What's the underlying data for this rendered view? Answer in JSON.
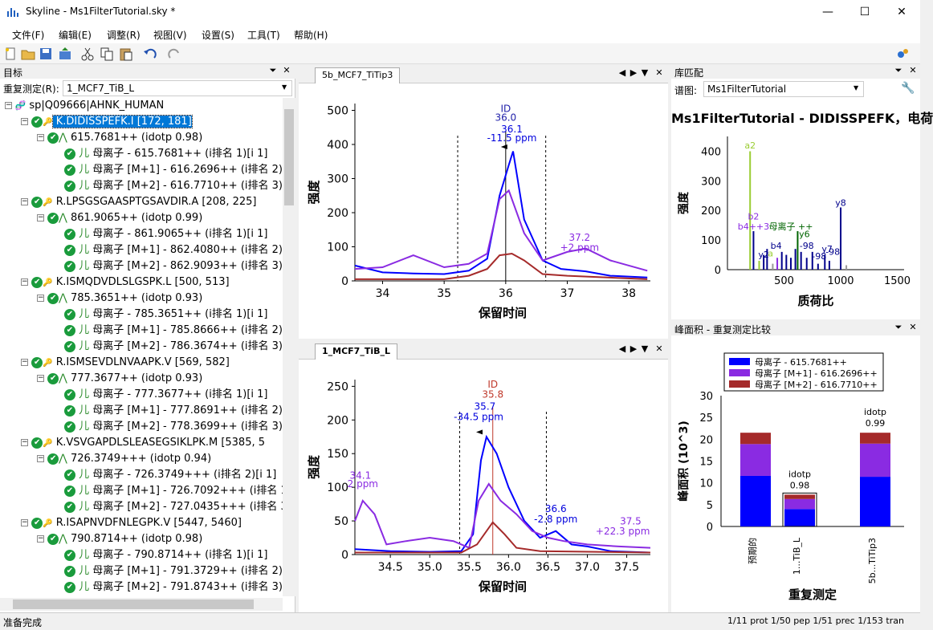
{
  "window": {
    "title": "Skyline - Ms1FilterTutorial.sky *"
  },
  "menu": [
    "文件(F)",
    "编辑(E)",
    "调整(R)",
    "视图(V)",
    "设置(S)",
    "工具(T)",
    "帮助(H)"
  ],
  "targets": {
    "title": "目标",
    "replicate_label": "重复测定(R):",
    "replicate_value": "1_MCF7_TiB_L",
    "protein": "sp|Q09666|AHNK_HUMAN",
    "rows": [
      {
        "type": "pep",
        "text": "K.DIDISSPEFK.I [172, 181]",
        "selected": true
      },
      {
        "type": "prec",
        "text": "615.7681++ (idotp 0.98)"
      },
      {
        "type": "trans",
        "text": "母离子 - 615.7681++ (i排名 1)[i 1]"
      },
      {
        "type": "trans",
        "text": "母离子 [M+1] - 616.2696++ (i排名 2)[i"
      },
      {
        "type": "trans",
        "text": "母离子 [M+2] - 616.7710++ (i排名 3)[i"
      },
      {
        "type": "pep",
        "text": "R.LPSGSGAASPTGSAVDIR.A [208, 225]"
      },
      {
        "type": "prec",
        "text": "861.9065++ (idotp 0.99)"
      },
      {
        "type": "trans",
        "text": "母离子 - 861.9065++ (i排名 1)[i 1]"
      },
      {
        "type": "trans",
        "text": "母离子 [M+1] - 862.4080++ (i排名 2)[i"
      },
      {
        "type": "trans",
        "text": "母离子 [M+2] - 862.9093++ (i排名 3)[i"
      },
      {
        "type": "pep",
        "text": "K.ISMQDVDLSLGSPK.L [500, 513]"
      },
      {
        "type": "prec",
        "text": "785.3651++ (idotp 0.93)"
      },
      {
        "type": "trans",
        "text": "母离子 - 785.3651++ (i排名 1)[i 1]"
      },
      {
        "type": "trans",
        "text": "母离子 [M+1] - 785.8666++ (i排名 2)[i"
      },
      {
        "type": "trans",
        "text": "母离子 [M+2] - 786.3674++ (i排名 3)[i"
      },
      {
        "type": "pep",
        "text": "R.ISMSEVDLNVAAPK.V [569, 582]"
      },
      {
        "type": "prec",
        "text": "777.3677++ (idotp 0.93)"
      },
      {
        "type": "trans",
        "text": "母离子 - 777.3677++ (i排名 1)[i 1]"
      },
      {
        "type": "trans",
        "text": "母离子 [M+1] - 777.8691++ (i排名 2)[i"
      },
      {
        "type": "trans",
        "text": "母离子 [M+2] - 778.3699++ (i排名 3)[i"
      },
      {
        "type": "pep",
        "text": "K.VSVGAPDLSLEASEGSIKLPK.M [5385, 5"
      },
      {
        "type": "prec",
        "text": "726.3749+++ (idotp 0.94)"
      },
      {
        "type": "trans",
        "text": "母离子 - 726.3749+++ (i排名 2)[i 1]"
      },
      {
        "type": "trans",
        "text": "母离子 [M+1] - 726.7092+++ (i排名 1)"
      },
      {
        "type": "trans",
        "text": "母离子 [M+2] - 727.0435+++ (i排名 3)"
      },
      {
        "type": "pep",
        "text": "R.ISAPNVDFNLEGPK.V [5447, 5460]"
      },
      {
        "type": "prec",
        "text": "790.8714++ (idotp 0.98)"
      },
      {
        "type": "trans",
        "text": "母离子 - 790.8714++ (i排名 1)[i 1]"
      },
      {
        "type": "trans",
        "text": "母离子 [M+1] - 791.3729++ (i排名 2)[i"
      },
      {
        "type": "trans",
        "text": "母离子 [M+2] - 791.8743++ (i排名 3)[i"
      }
    ]
  },
  "chrom_top": {
    "tab": "5b_MCF7_TiTip3",
    "xlabel": "保留时间",
    "ylabel": "强度",
    "xticks": [
      "34",
      "35",
      "36",
      "37",
      "38"
    ],
    "yticks": [
      "0",
      "100",
      "200",
      "300",
      "400",
      "500"
    ],
    "ann_id": "ID",
    "ann_id_val": "36.0",
    "ann_peak": "36.1",
    "ann_ppm": "-11.5 ppm",
    "ann_side": "37.2",
    "ann_side_ppm": "+2 ppm"
  },
  "chrom_bottom": {
    "tab": "1_MCF7_TiB_L",
    "xlabel": "保留时间",
    "ylabel": "强度",
    "xticks": [
      "34.5",
      "35.0",
      "35.5",
      "36.0",
      "36.5",
      "37.0",
      "37.5"
    ],
    "yticks": [
      "0",
      "50",
      "100",
      "150",
      "200",
      "250"
    ],
    "ann_id": "ID",
    "ann_id_val": "35.8",
    "ann_peak": "35.7",
    "ann_ppm": "-34.5 ppm",
    "ann_left": "34.1",
    "ann_left_ppm": "2 ppm",
    "ann_mid": "36.6",
    "ann_mid_ppm": "-2.8 ppm",
    "ann_right": "37.5",
    "ann_right_ppm": "+22.3 ppm"
  },
  "library": {
    "title": "库匹配",
    "spectrum_label": "谱图:",
    "spectrum_value": "Ms1FilterTutorial",
    "heading": "Ms1FilterTutorial - DIDISSPEFK，电荷",
    "xlabel": "质荷比",
    "ylabel": "强度",
    "xticks": [
      "500",
      "1000",
      "1500"
    ],
    "yticks": [
      "0",
      "100",
      "200",
      "300",
      "400"
    ],
    "labels": {
      "a2": "a2",
      "b2": "b2",
      "b4": "b4++3",
      "y8": "y8",
      "prec": "母离子 ++",
      "y6": "y6",
      "y2": "y2",
      "b4b": "b4",
      "a": "a",
      "y7": "y7",
      "m98": "-98",
      "m98b": "-98",
      "m98c": "-98"
    }
  },
  "peak_area": {
    "title": "峰面积 - 重复测定比较",
    "legend": [
      "母离子 - 615.7681++",
      "母离子 [M+1] - 616.2696++",
      "母离子 [M+2] - 616.7710++"
    ],
    "xlabel": "重复测定",
    "ylabel": "峰面积 (10^3)",
    "bar_top_labels": [
      {
        "top": "idotp",
        "val": "0.98"
      },
      {
        "top": "idotp",
        "val": "0.99"
      }
    ],
    "colors": [
      "#0000ff",
      "#8a2be2",
      "#a52a2a"
    ]
  },
  "chart_data": [
    {
      "type": "bar",
      "categories": [
        "预期的",
        "1...TiB_L",
        "5b...TiTip3"
      ],
      "series": [
        {
          "name": "母离子 - 615.7681++",
          "values": [
            11.6,
            4.0,
            11.4
          ]
        },
        {
          "name": "母离子 [M+1] - 616.2696++",
          "values": [
            7.3,
            2.3,
            7.6
          ]
        },
        {
          "name": "母离子 [M+2] - 616.7710++",
          "values": [
            2.6,
            1.0,
            2.5
          ]
        }
      ],
      "xlabel": "重复测定",
      "ylabel": "峰面积 (10^3)",
      "ylim": [
        0,
        30
      ]
    }
  ],
  "status": {
    "left": "准备完成",
    "right": "1/11 prot  1/50 pep  1/51 prec  1/153 tran"
  }
}
